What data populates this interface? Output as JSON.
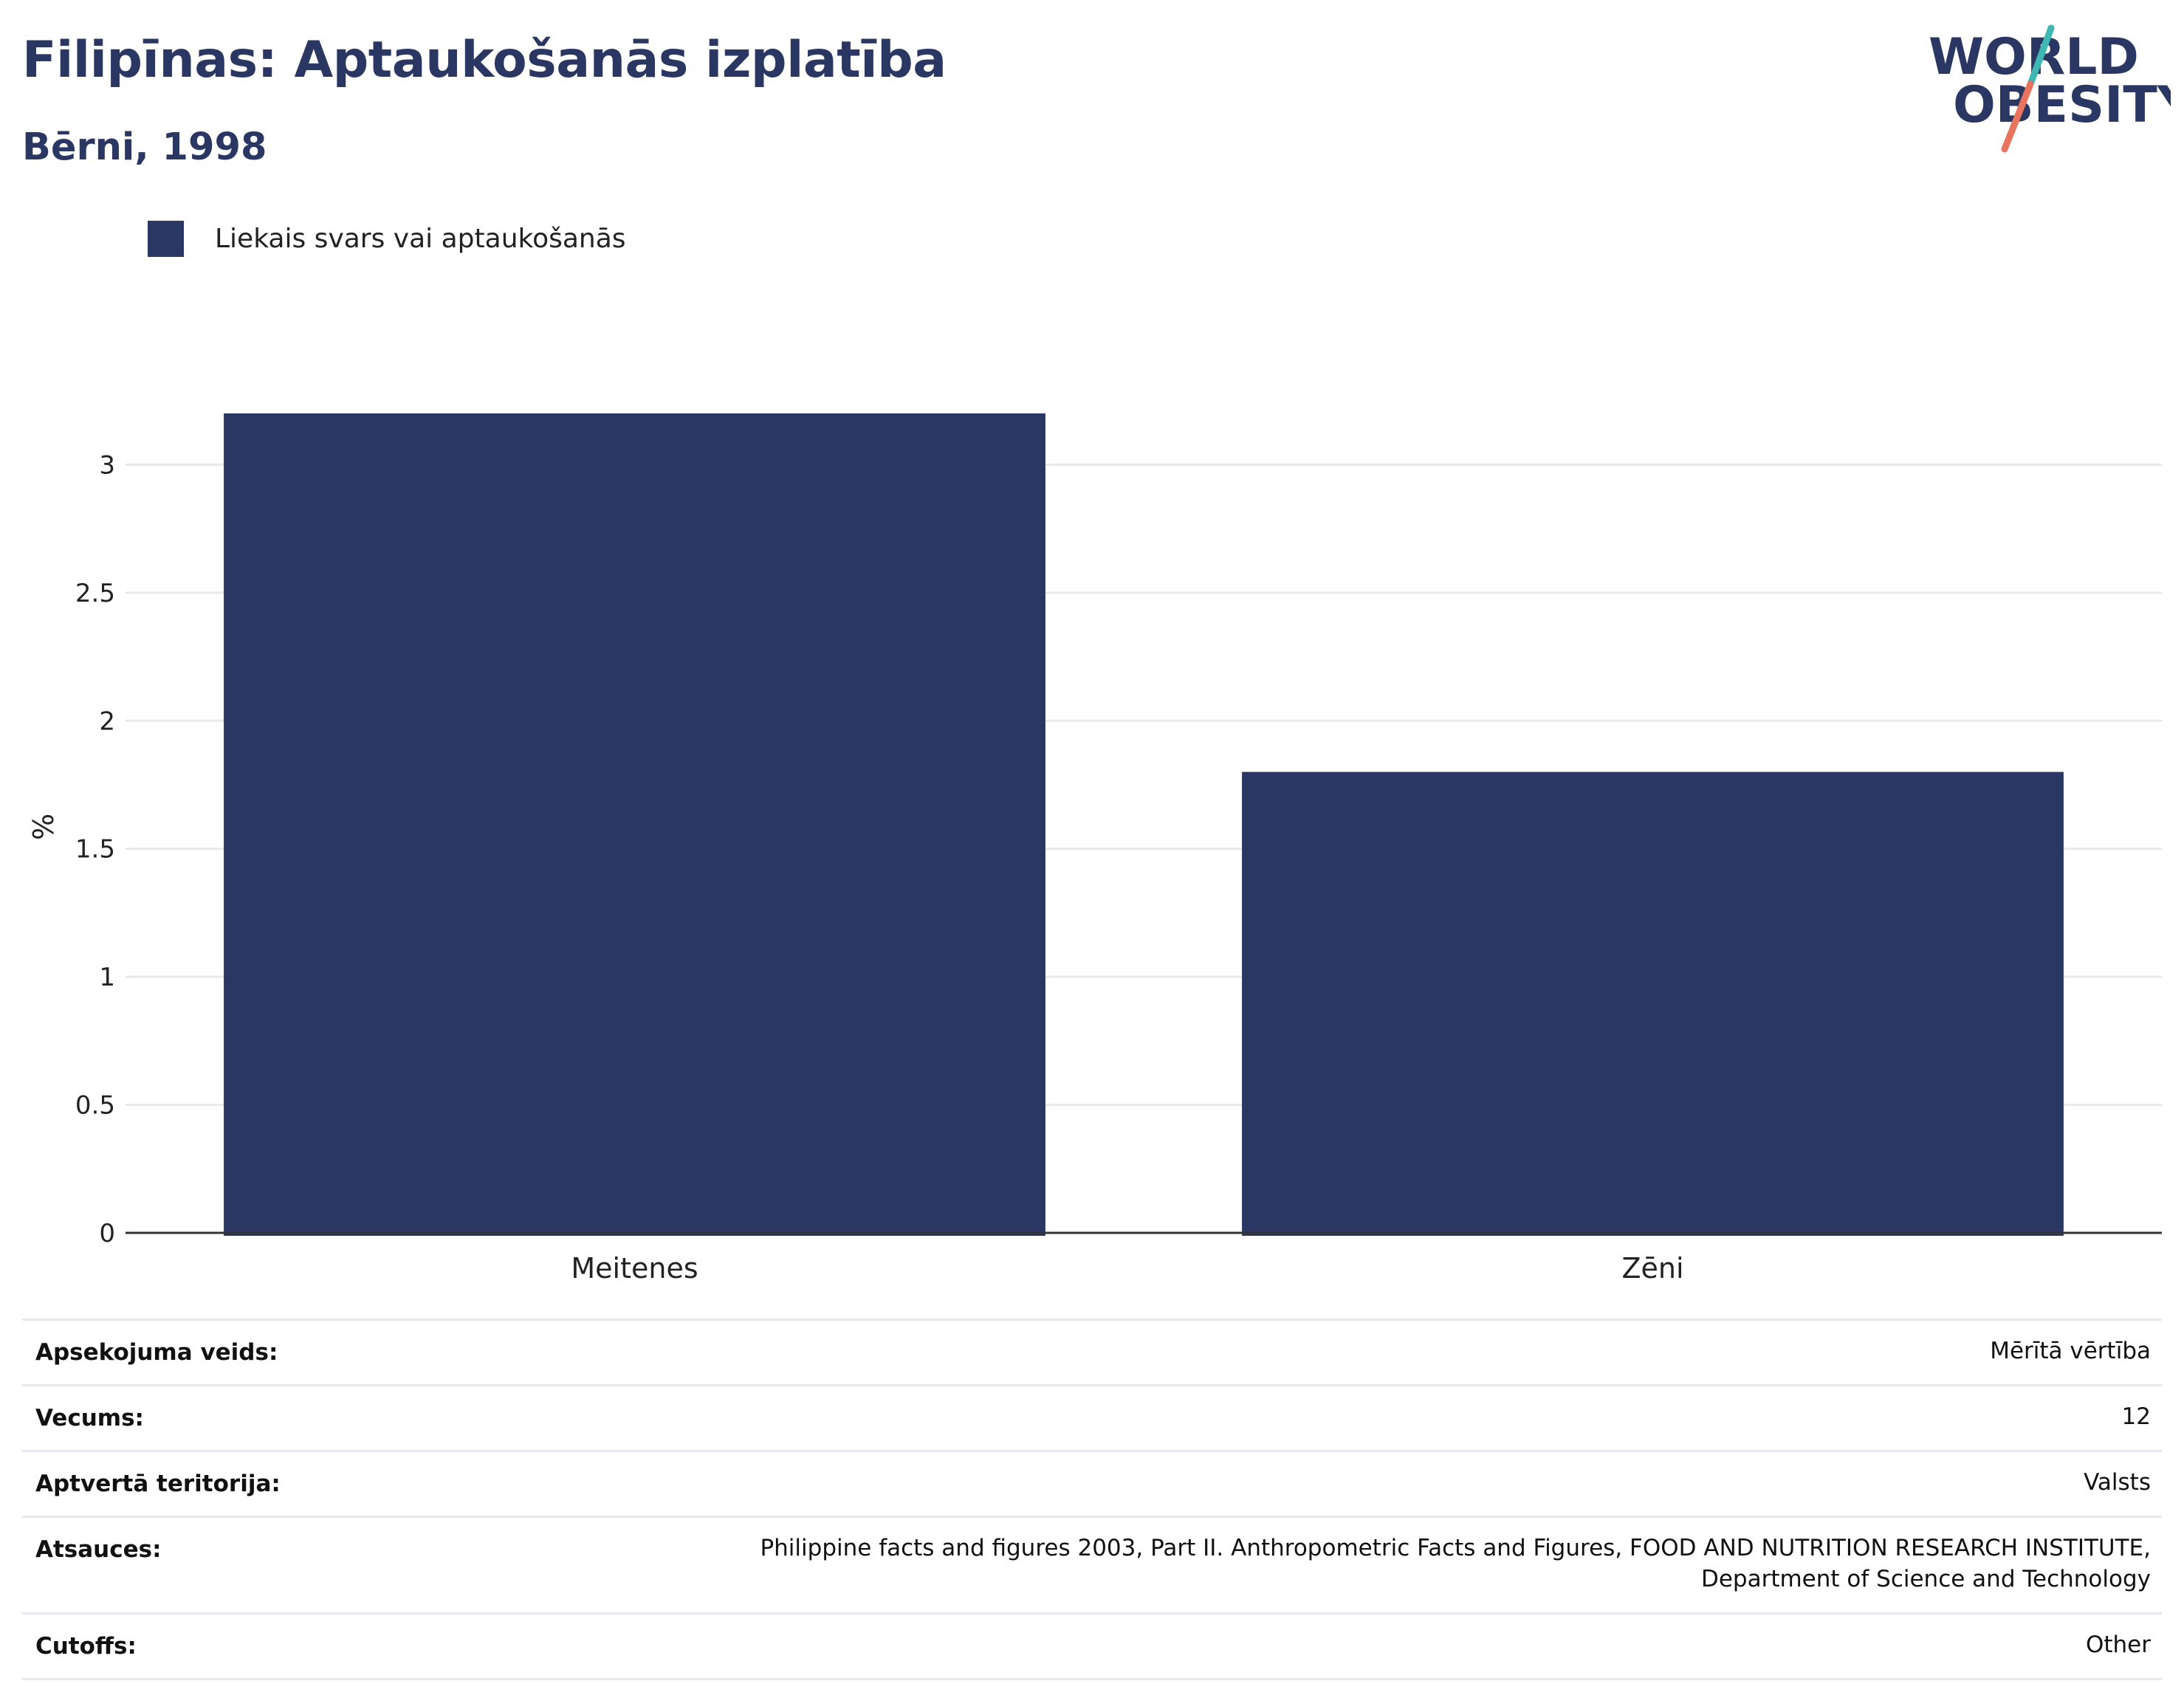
{
  "header": {
    "title": "Filipīnas: Aptaukošanās izplatība",
    "subtitle": "Bērni, 1998"
  },
  "logo": {
    "line1": "WORLD",
    "line2": "OBESITY",
    "colors": {
      "text": "#2b3763",
      "slash_top": "#3fb8b3",
      "slash_bottom": "#e8745e"
    }
  },
  "legend": {
    "label": "Liekais svars vai aptaukošanās",
    "color": "#2b3763"
  },
  "chart_data": {
    "type": "bar",
    "categories": [
      "Meitenes",
      "Zēni"
    ],
    "series": [
      {
        "name": "Liekais svars vai aptaukošanās",
        "color": "#2b3763",
        "values": [
          3.2,
          1.8
        ]
      }
    ],
    "ylabel": "%",
    "xlabel": "",
    "ylim": [
      0,
      3.2
    ],
    "yticks": [
      0,
      0.5,
      1,
      1.5,
      2,
      2.5,
      3
    ],
    "ytick_labels": [
      "0",
      "0.5",
      "1",
      "1.5",
      "2",
      "2.5",
      "3"
    ],
    "grid": true,
    "legend_position": "top-left"
  },
  "info": [
    {
      "key": "Apsekojuma veids:",
      "value": "Mērītā vērtība"
    },
    {
      "key": "Vecums:",
      "value": "12"
    },
    {
      "key": "Aptvertā teritorija:",
      "value": "Valsts"
    },
    {
      "key": "Atsauces:",
      "value": "Philippine facts and figures 2003, Part II. Anthropometric Facts and Figures, FOOD AND NUTRITION RESEARCH INSTITUTE, Department of Science and Technology"
    },
    {
      "key": "Cutoffs:",
      "value": "Other"
    }
  ]
}
